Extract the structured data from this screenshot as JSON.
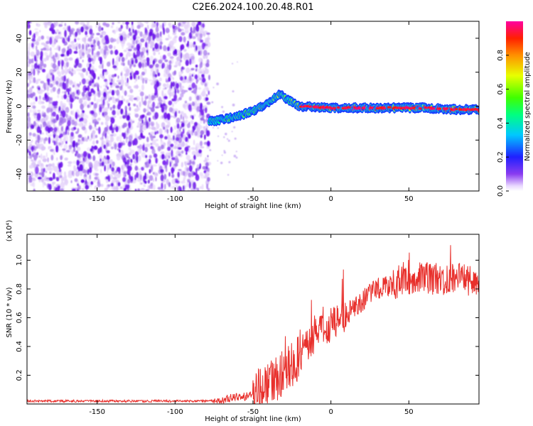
{
  "title": "C2E6.2024.100.20.48.R01",
  "chart_data": [
    {
      "type": "heatmap",
      "xlabel": "Height of straight line (km)",
      "ylabel": "Frequency (Hz)",
      "xlim": [
        -195,
        95
      ],
      "ylim": [
        -50,
        50
      ],
      "xticks": [
        -150,
        -100,
        -50,
        0,
        50
      ],
      "yticks": [
        -40,
        -20,
        0,
        20,
        40
      ],
      "colorbar": {
        "label": "Normalized spectral amplitude",
        "range": [
          0,
          1
        ],
        "ticks": [
          0.0,
          0.2,
          0.4,
          0.6,
          0.8
        ],
        "colormap": "rainbow"
      },
      "noise_region_x": [
        -195,
        -78
      ],
      "signal_track": [
        {
          "x": -78,
          "y": -9,
          "amp": 0.45
        },
        {
          "x": -70,
          "y": -8,
          "amp": 0.5
        },
        {
          "x": -60,
          "y": -6,
          "amp": 0.55
        },
        {
          "x": -50,
          "y": -3,
          "amp": 0.6
        },
        {
          "x": -40,
          "y": 2,
          "amp": 0.6
        },
        {
          "x": -33,
          "y": 7,
          "amp": 0.65
        },
        {
          "x": -28,
          "y": 4,
          "amp": 0.5
        },
        {
          "x": -20,
          "y": 0,
          "amp": 0.9
        },
        {
          "x": 0,
          "y": -1,
          "amp": 0.95
        },
        {
          "x": 20,
          "y": -1,
          "amp": 0.9
        },
        {
          "x": 40,
          "y": -1,
          "amp": 0.85
        },
        {
          "x": 60,
          "y": -1,
          "amp": 0.85
        },
        {
          "x": 80,
          "y": -2,
          "amp": 0.85
        },
        {
          "x": 95,
          "y": -2,
          "amp": 0.8
        }
      ]
    },
    {
      "type": "line",
      "xlabel": "Height of straight line (km)",
      "ylabel": "SNR (10 * v/v)",
      "y_multiplier": "(x10⁴)",
      "xlim": [
        -195,
        95
      ],
      "ylim": [
        0,
        1.18
      ],
      "xticks": [
        -150,
        -100,
        -50,
        0,
        50
      ],
      "yticks": [
        0.2,
        0.4,
        0.6,
        0.8,
        1.0
      ],
      "series": [
        {
          "color": "#e8302c",
          "x": [
            -195,
            -100,
            -75,
            -65,
            -55,
            -45,
            -35,
            -30,
            -25,
            -20,
            -15,
            -10,
            -5,
            0,
            10,
            20,
            30,
            40,
            50,
            60,
            70,
            80,
            90,
            95
          ],
          "y": [
            0.02,
            0.02,
            0.02,
            0.04,
            0.05,
            0.09,
            0.17,
            0.22,
            0.27,
            0.33,
            0.42,
            0.47,
            0.5,
            0.55,
            0.62,
            0.72,
            0.8,
            0.83,
            0.87,
            0.88,
            0.86,
            0.87,
            0.86,
            0.85
          ]
        }
      ]
    }
  ]
}
